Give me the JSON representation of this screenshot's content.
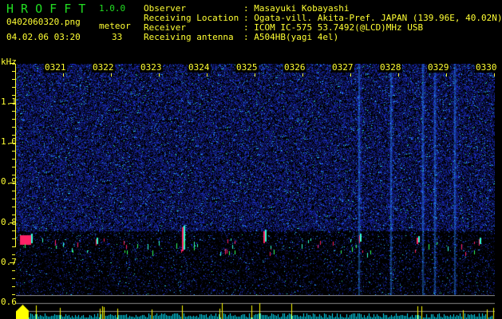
{
  "app": {
    "name": "H R O F F T",
    "version": "1.0.0"
  },
  "file": {
    "name": "0402060320.png",
    "datetime": "04.02.06 03:20"
  },
  "meteor": {
    "label": "meteor",
    "count": "33"
  },
  "info": [
    {
      "label": "Observer",
      "value": ": Masayuki Kobayashi"
    },
    {
      "label": "Receiving Location",
      "value": ": Ogata-vill. Akita-Pref. JAPAN (139.96E, 40.02N)"
    },
    {
      "label": "Receiver",
      "value": ": ICOM IC-575 53.7492(@LCD)MHz USB"
    },
    {
      "label": "Receiving antenna",
      "value": ": A504HB(yagi 4el)"
    }
  ],
  "axis": {
    "unit": "kHz",
    "freq_ticks": [
      "1.1",
      "1.0",
      "0.9",
      "0.8",
      "0.7",
      "0.6"
    ],
    "time_ticks": [
      "0321",
      "0322",
      "0323",
      "0324",
      "0325",
      "0326",
      "0327",
      "0328",
      "0329",
      "0330"
    ]
  },
  "colors": {
    "text": "#ffff33",
    "title": "#22dd22",
    "noise": "#1a2acc",
    "echo": "#ff2266",
    "bars_low": "#00e5ff",
    "bars_high": "#ffff00"
  }
}
